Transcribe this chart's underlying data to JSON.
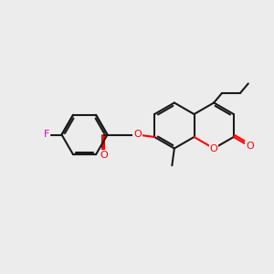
{
  "bg_color": "#ececec",
  "bond_color": "#1a1a1a",
  "O_color": "#ff0000",
  "F_color": "#dd00cc",
  "line_width": 1.5,
  "figsize": [
    3.0,
    3.0
  ],
  "dpi": 100,
  "xlim": [
    -1,
    11
  ],
  "ylim": [
    -1,
    11
  ]
}
